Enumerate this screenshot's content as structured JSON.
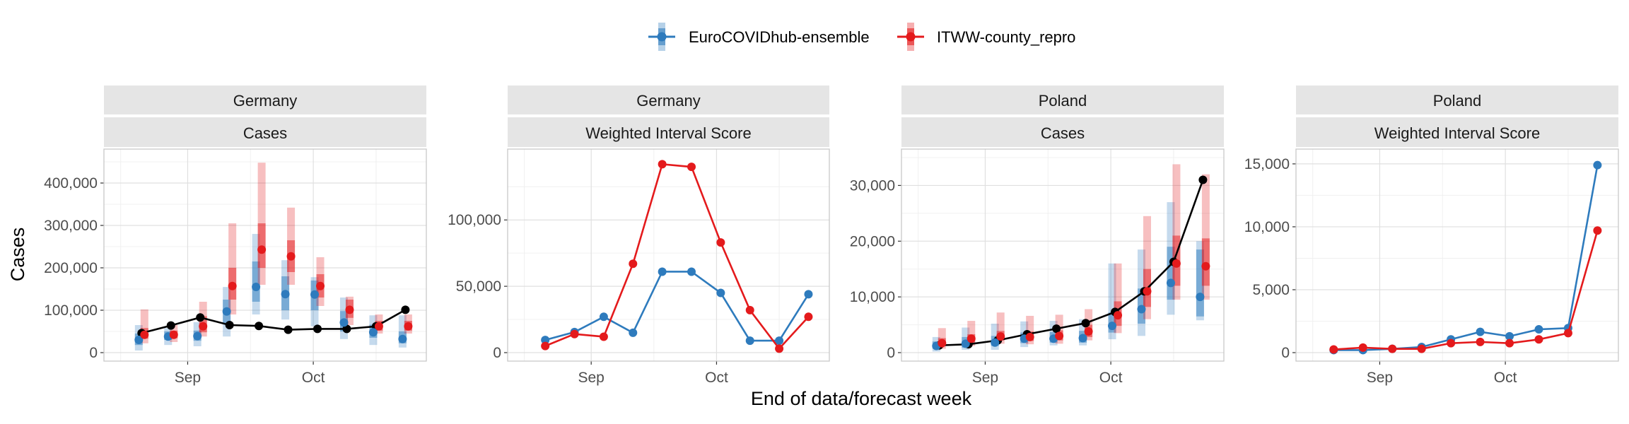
{
  "legend": {
    "items": [
      {
        "label": "EuroCOVIDhub-ensemble",
        "color": "#2e7bbd"
      },
      {
        "label": "ITWW-county_repro",
        "color": "#e41a1c"
      }
    ]
  },
  "axis": {
    "xlabel": "End of data/forecast week",
    "ylabel": "Cases"
  },
  "colors": {
    "observed": "#000000",
    "ensemble": "#2e7bbd",
    "repro": "#e41a1c"
  },
  "chart_data": [
    {
      "type": "line",
      "facet": [
        "Germany",
        "Cases"
      ],
      "x": [
        "2021-08-21",
        "2021-08-28",
        "2021-09-04",
        "2021-09-11",
        "2021-09-18",
        "2021-09-25",
        "2021-10-02",
        "2021-10-09",
        "2021-10-16",
        "2021-10-23"
      ],
      "ylim": [
        0,
        460000
      ],
      "yticks": [
        0,
        100000,
        200000,
        300000,
        400000
      ],
      "ytick_labels": [
        "0",
        "100,000",
        "200,000",
        "300,000",
        "400,000"
      ],
      "xticks": [
        "2021-09-01",
        "2021-10-01"
      ],
      "xtick_labels": [
        "Sep",
        "Oct"
      ],
      "observed": [
        46000,
        64000,
        83000,
        65000,
        63000,
        54000,
        56000,
        56000,
        62000,
        101000
      ],
      "series": [
        {
          "name": "EuroCOVIDhub-ensemble",
          "values": [
            30000,
            38000,
            39000,
            97000,
            155000,
            138000,
            137000,
            71000,
            48000,
            32000
          ],
          "ci50": [
            [
              18000,
              45000
            ],
            [
              30000,
              50000
            ],
            [
              28000,
              52000
            ],
            [
              70000,
              125000
            ],
            [
              120000,
              215000
            ],
            [
              100000,
              180000
            ],
            [
              100000,
              170000
            ],
            [
              50000,
              98000
            ],
            [
              35000,
              66000
            ],
            [
              22000,
              50000
            ]
          ],
          "ci90": [
            [
              5000,
              65000
            ],
            [
              18000,
              58000
            ],
            [
              15000,
              72000
            ],
            [
              38000,
              155000
            ],
            [
              90000,
              280000
            ],
            [
              78000,
              218000
            ],
            [
              62000,
              178000
            ],
            [
              32000,
              130000
            ],
            [
              18000,
              88000
            ],
            [
              12000,
              88000
            ]
          ]
        },
        {
          "name": "ITWW-county_repro",
          "values": [
            42000,
            42000,
            62000,
            157000,
            243000,
            227000,
            157000,
            101000,
            62000,
            62000
          ],
          "ci50": [
            [
              33000,
              58000
            ],
            [
              34000,
              52000
            ],
            [
              48000,
              86000
            ],
            [
              125000,
              200000
            ],
            [
              200000,
              305000
            ],
            [
              190000,
              265000
            ],
            [
              130000,
              185000
            ],
            [
              82000,
              125000
            ],
            [
              52000,
              75000
            ],
            [
              52000,
              75000
            ]
          ],
          "ci90": [
            [
              22000,
              102000
            ],
            [
              25000,
              65000
            ],
            [
              38000,
              120000
            ],
            [
              90000,
              305000
            ],
            [
              160000,
              448000
            ],
            [
              160000,
              342000
            ],
            [
              110000,
              225000
            ],
            [
              65000,
              132000
            ],
            [
              45000,
              90000
            ],
            [
              45000,
              90000
            ]
          ]
        }
      ]
    },
    {
      "type": "line",
      "facet": [
        "Germany",
        "Weighted Interval Score"
      ],
      "x": [
        "2021-08-21",
        "2021-08-28",
        "2021-09-04",
        "2021-09-11",
        "2021-09-18",
        "2021-09-25",
        "2021-10-02",
        "2021-10-09",
        "2021-10-16",
        "2021-10-23"
      ],
      "ylim": [
        0,
        147000
      ],
      "yticks": [
        0,
        50000,
        100000
      ],
      "ytick_labels": [
        "0",
        "50,000",
        "100,000"
      ],
      "xticks": [
        "2021-09-01",
        "2021-10-01"
      ],
      "xtick_labels": [
        "Sep",
        "Oct"
      ],
      "series": [
        {
          "name": "EuroCOVIDhub-ensemble",
          "values": [
            9500,
            15500,
            27000,
            15000,
            61000,
            61000,
            45000,
            9000,
            9000,
            44000
          ]
        },
        {
          "name": "ITWW-county_repro",
          "values": [
            5000,
            14000,
            12000,
            67000,
            142000,
            140000,
            83000,
            32000,
            3000,
            27000
          ]
        }
      ]
    },
    {
      "type": "line",
      "facet": [
        "Poland",
        "Cases"
      ],
      "x": [
        "2021-08-21",
        "2021-08-28",
        "2021-09-04",
        "2021-09-11",
        "2021-09-18",
        "2021-09-25",
        "2021-10-02",
        "2021-10-09",
        "2021-10-16",
        "2021-10-23"
      ],
      "ylim": [
        0,
        35000
      ],
      "yticks": [
        0,
        10000,
        20000,
        30000
      ],
      "ytick_labels": [
        "0",
        "10,000",
        "20,000",
        "30,000"
      ],
      "xticks": [
        "2021-09-01",
        "2021-10-01"
      ],
      "xtick_labels": [
        "Sep",
        "Oct"
      ],
      "observed": [
        1300,
        1500,
        2200,
        3300,
        4300,
        5300,
        7300,
        11000,
        16300,
        31000
      ],
      "series": [
        {
          "name": "EuroCOVIDhub-ensemble",
          "values": [
            1200,
            1600,
            1800,
            2500,
            2500,
            2600,
            4800,
            7800,
            12500,
            10000
          ],
          "ci50": [
            [
              700,
              2000
            ],
            [
              900,
              2800
            ],
            [
              1200,
              3000
            ],
            [
              1700,
              3600
            ],
            [
              1800,
              3700
            ],
            [
              1800,
              3900
            ],
            [
              3600,
              7200
            ],
            [
              5200,
              11500
            ],
            [
              9500,
              19000
            ],
            [
              6500,
              18500
            ]
          ],
          "ci90": [
            [
              200,
              2800
            ],
            [
              500,
              4500
            ],
            [
              500,
              5200
            ],
            [
              1000,
              5600
            ],
            [
              1300,
              5700
            ],
            [
              1300,
              6000
            ],
            [
              2400,
              16000
            ],
            [
              3000,
              18500
            ],
            [
              6800,
              27000
            ],
            [
              5800,
              20000
            ]
          ]
        },
        {
          "name": "ITWW-county_repro",
          "values": [
            1700,
            2500,
            2900,
            2800,
            3000,
            3800,
            6700,
            11000,
            16000,
            15500
          ],
          "ci50": [
            [
              1200,
              2600
            ],
            [
              1800,
              3300
            ],
            [
              2200,
              3900
            ],
            [
              2100,
              3800
            ],
            [
              2200,
              4000
            ],
            [
              2800,
              5000
            ],
            [
              4800,
              9200
            ],
            [
              8200,
              15000
            ],
            [
              12000,
              21000
            ],
            [
              12000,
              20500
            ]
          ],
          "ci90": [
            [
              700,
              4400
            ],
            [
              1200,
              5700
            ],
            [
              1600,
              7200
            ],
            [
              1500,
              6600
            ],
            [
              1600,
              6800
            ],
            [
              2200,
              7800
            ],
            [
              3500,
              16000
            ],
            [
              6000,
              24500
            ],
            [
              9500,
              33800
            ],
            [
              9500,
              32000
            ]
          ]
        }
      ]
    },
    {
      "type": "line",
      "facet": [
        "Poland",
        "Weighted Interval Score"
      ],
      "x": [
        "2021-08-21",
        "2021-08-28",
        "2021-09-04",
        "2021-09-11",
        "2021-09-18",
        "2021-09-25",
        "2021-10-02",
        "2021-10-09",
        "2021-10-16",
        "2021-10-23"
      ],
      "ylim": [
        0,
        15500
      ],
      "yticks": [
        0,
        5000,
        10000,
        15000
      ],
      "ytick_labels": [
        "0",
        "5,000",
        "10,000",
        "15,000"
      ],
      "xticks": [
        "2021-09-01",
        "2021-10-01"
      ],
      "xtick_labels": [
        "Sep",
        "Oct"
      ],
      "series": [
        {
          "name": "EuroCOVIDhub-ensemble",
          "values": [
            200,
            200,
            300,
            450,
            1050,
            1650,
            1300,
            1850,
            1950,
            14900
          ]
        },
        {
          "name": "ITWW-county_repro",
          "values": [
            250,
            400,
            300,
            300,
            750,
            850,
            750,
            1050,
            1550,
            9700
          ]
        }
      ]
    }
  ]
}
